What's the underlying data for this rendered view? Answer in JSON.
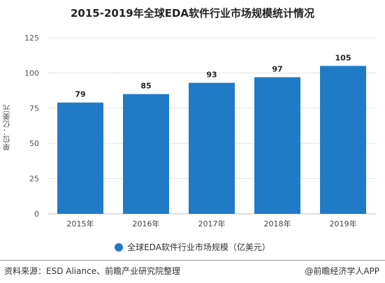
{
  "chart_data": {
    "type": "bar",
    "title": "2015-2019年全球EDA软件行业市场规模统计情况",
    "categories": [
      "2015年",
      "2016年",
      "2017年",
      "2018年",
      "2019年"
    ],
    "values": [
      79,
      85,
      93,
      97,
      105
    ],
    "ylabel": "单位：亿美元",
    "xlabel": "",
    "ylim": [
      0,
      125
    ],
    "yticks": [
      0,
      25,
      50,
      75,
      100,
      125
    ],
    "grid": true,
    "legend_position": "bottom",
    "series": [
      {
        "name": "全球EDA软件行业市场规模（亿美元）",
        "values": [
          79,
          85,
          93,
          97,
          105
        ]
      }
    ],
    "bar_color": "#1f7bc6"
  },
  "footer": {
    "source": "资料来源：ESD Aliance、前瞻产业研究院整理",
    "brand": "@前瞻经济学人APP"
  }
}
